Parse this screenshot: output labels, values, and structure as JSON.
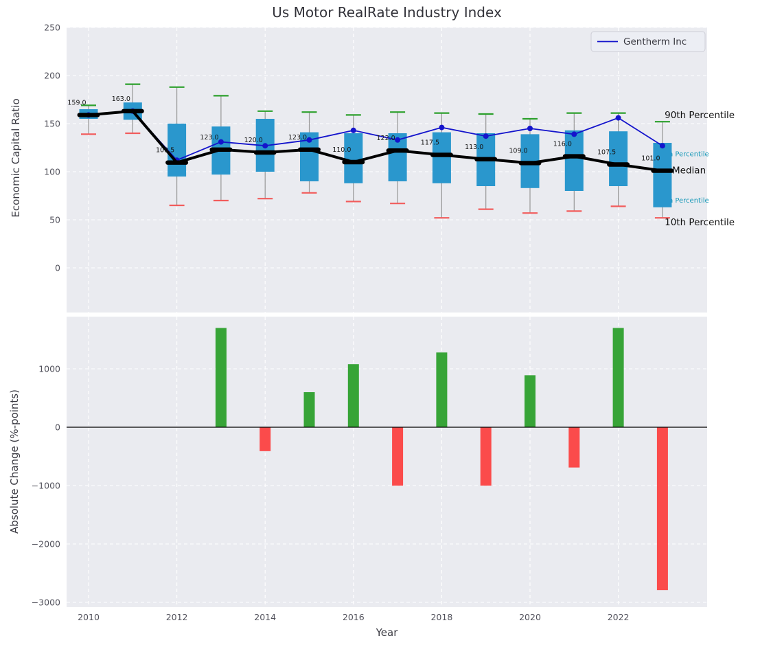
{
  "figure": {
    "title": "Us Motor RealRate Industry Index",
    "xlabel": "Year",
    "top_ylabel": "Economic Capital Ratio",
    "bottom_ylabel": "Absolute Change (%-points)"
  },
  "colors": {
    "axes_bg": "#eaebf0",
    "grid": "#ffffff",
    "tick_text": "#52525c",
    "box_fill": "#2a97cd",
    "whisker": "#969696",
    "cap_top": "#2ca02c",
    "cap_bottom": "#f25c5c",
    "median": "#000000",
    "gentherm_line": "#1414cc",
    "bar_positive": "#37a437",
    "bar_negative": "#fb4b4b",
    "annotation_cyan": "#1899b8",
    "annotation_black": "#111111"
  },
  "chart_data": [
    {
      "type": "boxplot_line",
      "title": "Us Motor RealRate Industry Index",
      "ylabel": "Economic Capital Ratio",
      "ylim": [
        -46,
        250
      ],
      "yticks": [
        250,
        200,
        150,
        100,
        50,
        0
      ],
      "grid": true,
      "years": [
        2010,
        2011,
        2012,
        2013,
        2014,
        2015,
        2016,
        2017,
        2018,
        2019,
        2020,
        2021,
        2022,
        2023
      ],
      "series": {
        "p90": [
          169,
          191,
          188,
          179,
          163,
          162,
          159,
          162,
          161,
          160,
          155,
          161,
          161,
          152
        ],
        "p75": [
          165,
          172,
          150,
          147,
          155,
          141,
          140,
          140,
          141,
          140,
          139,
          143,
          142,
          130
        ],
        "median": [
          159,
          163,
          109.5,
          123,
          120,
          123,
          110,
          122,
          117.5,
          113,
          109,
          116,
          107.5,
          101
        ],
        "p25": [
          155,
          154,
          95,
          97,
          100,
          90,
          88,
          90,
          88,
          85,
          83,
          80,
          85,
          63
        ],
        "p10": [
          139,
          140,
          65,
          70,
          72,
          78,
          69,
          67,
          52,
          61,
          57,
          59,
          64,
          52
        ],
        "gentherm_inc": [
          159,
          163,
          112,
          131,
          127,
          133,
          143,
          133,
          146,
          137,
          145,
          139,
          156,
          127
        ]
      },
      "median_labels": [
        "159.0",
        "163.0",
        "109.5",
        "123.0",
        "120.0",
        "123.0",
        "110.0",
        "122.0",
        "117.5",
        "113.0",
        "109.0",
        "116.0",
        "107.5",
        "101.0"
      ],
      "legend": {
        "label": "Gentherm Inc",
        "position": "upper right"
      },
      "annotations": [
        {
          "text": "90th Percentile",
          "y_value": 159,
          "x_year": 2023.05,
          "style": "dark"
        },
        {
          "text": "75th Percentile",
          "y_value": 118.5,
          "x_year": 2022.88,
          "style": "cyan"
        },
        {
          "text": "Median",
          "y_value": 101.5,
          "x_year": 2023.22,
          "style": "dark"
        },
        {
          "text": "25th Percentile",
          "y_value": 70.5,
          "x_year": 2022.88,
          "style": "cyan"
        },
        {
          "text": "10th Percentile",
          "y_value": 47.5,
          "x_year": 2023.05,
          "style": "dark"
        }
      ]
    },
    {
      "type": "bar",
      "ylabel": "Absolute Change (%-points)",
      "xlabel": "Year",
      "ylim": [
        -3080,
        1900
      ],
      "yticks": [
        1000,
        0,
        -1000,
        -2000,
        -3000
      ],
      "xticks": [
        2010,
        2012,
        2014,
        2016,
        2018,
        2020,
        2022
      ],
      "grid": true,
      "years": [
        2010,
        2011,
        2012,
        2013,
        2014,
        2015,
        2016,
        2017,
        2018,
        2019,
        2020,
        2021,
        2022,
        2023
      ],
      "values": [
        null,
        null,
        null,
        1700,
        -410,
        600,
        1080,
        -1000,
        1280,
        -1000,
        890,
        -690,
        1700,
        -2790
      ]
    }
  ]
}
